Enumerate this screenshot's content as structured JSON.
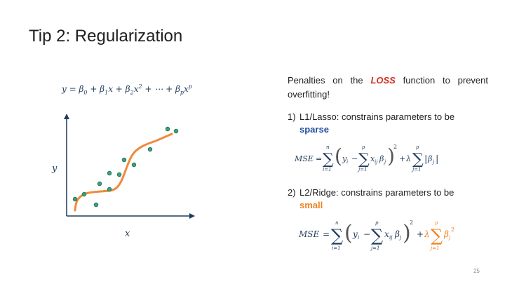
{
  "slide": {
    "title": "Tip 2: Regularization",
    "page_number": "25"
  },
  "left": {
    "poly_equation": "y = β0 + β1x + β2x² + ⋯ + βpx^p",
    "axis_x_label": "x",
    "axis_y_label": "y",
    "point_color": "#3aa37a",
    "curve_color": "#f08a3c",
    "axis_color": "#1f3b5c"
  },
  "right": {
    "intro_line1_pre": "Penalties on the ",
    "intro_loss": "LOSS",
    "intro_line1_post": " function to prevent",
    "intro_line2": "overfitting!",
    "item1_number": "1)",
    "item1_text": "L1/Lasso: constrains parameters to be",
    "item1_keyword": "sparse",
    "item2_number": "2)",
    "item2_text": "L2/Ridge: constrains parameters to be",
    "item2_keyword": "small",
    "accent_l1": "#1f4e9e",
    "accent_l2": "#f07f1e",
    "accent_loss": "#d43024"
  },
  "formulas": {
    "mse": "MSE",
    "equals": "=",
    "sum": "∑",
    "i_eq_1": "i=1",
    "j_eq_1": "j=1",
    "n": "n",
    "p": "p",
    "y_i": "y",
    "i": "i",
    "x": "x",
    "ij": "ij",
    "beta": "β",
    "j": "j",
    "minus": "−",
    "plus": "+",
    "lambda": "λ",
    "two": "2"
  }
}
